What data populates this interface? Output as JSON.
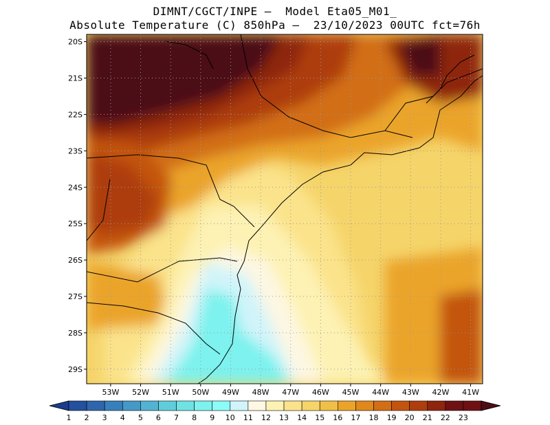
{
  "title": {
    "line1": "DIMNT/CGCT/INPE –  Model Eta05_M01_",
    "line2": "Absolute Temperature (C) 850hPa –  23/10/2023 00UTC fct=76h"
  },
  "map": {
    "lat_labels": [
      "20S",
      "21S",
      "22S",
      "23S",
      "24S",
      "25S",
      "26S",
      "27S",
      "28S",
      "29S"
    ],
    "lon_labels": [
      "53W",
      "52W",
      "51W",
      "50W",
      "49W",
      "48W",
      "47W",
      "46W",
      "45W",
      "44W",
      "43W",
      "42W",
      "41W"
    ],
    "lat_range": [
      -29.4,
      -19.8
    ],
    "lon_range": [
      -53.8,
      -40.6
    ]
  },
  "colorbar": {
    "labels": [
      "1",
      "2",
      "3",
      "4",
      "5",
      "6",
      "7",
      "8",
      "9",
      "10",
      "11",
      "12",
      "13",
      "14",
      "15",
      "16",
      "17",
      "18",
      "19",
      "20",
      "21",
      "22",
      "23"
    ],
    "colors": [
      "#1b3d8c",
      "#24519d",
      "#2e66ad",
      "#3880bb",
      "#4499c7",
      "#52b3d2",
      "#60cddb",
      "#6fe2e4",
      "#7df2ee",
      "#8cfcf7",
      "#d0f4fa",
      "#fdf7e3",
      "#fdf2b4",
      "#fbe38b",
      "#f5d46a",
      "#f0bf47",
      "#eba42a",
      "#e0881a",
      "#d26e14",
      "#c3540f",
      "#ae3e0d",
      "#8e250f",
      "#6e1115",
      "#4c0d17"
    ]
  }
}
